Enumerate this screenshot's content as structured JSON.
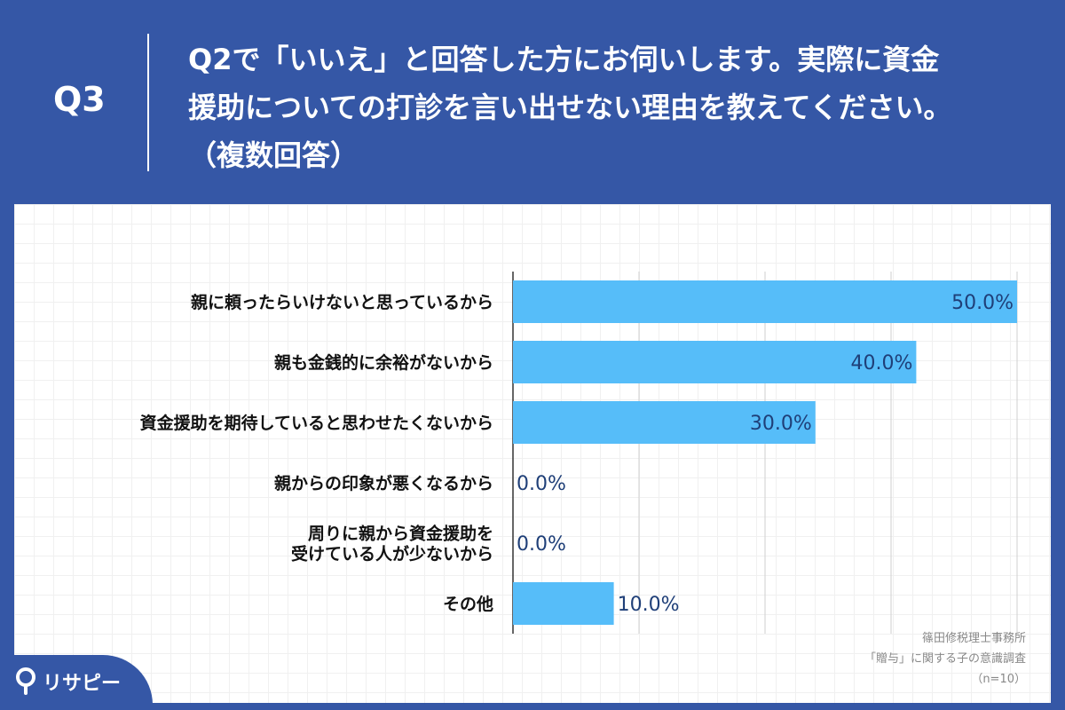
{
  "header": {
    "question_no": "Q3",
    "question_lines": [
      "Q2で「いいえ」と回答した方にお伺いします。実際に資金",
      "援助についての打診を言い出せない理由を教えてください。",
      "（複数回答）"
    ]
  },
  "source": {
    "lines": [
      "篠田修税理士事務所",
      "「贈与」に関する子の意識調査",
      "（n=10）"
    ]
  },
  "logo": {
    "text": "リサピー",
    "icon": "location-pin-icon"
  },
  "colors": {
    "background": "#3557a6",
    "bar": "#56bdf9",
    "value_label": "#1f3f78",
    "category_label": "#111111",
    "grid": "#cfcfcf"
  },
  "chart_data": {
    "type": "bar",
    "orientation": "horizontal",
    "categories": [
      "親に頼ったらいけないと思っているから",
      "親も金銭的に余裕がないから",
      "資金援助を期待していると思わせたくないから",
      "親からの印象が悪くなるから",
      "周りに親から資金援助を\n受けている人が少ないから",
      "その他"
    ],
    "values": [
      50.0,
      40.0,
      30.0,
      0.0,
      0.0,
      10.0
    ],
    "value_labels": [
      "50.0%",
      "40.0%",
      "30.0%",
      "0.0%",
      "0.0%",
      "10.0%"
    ],
    "xlim": [
      0,
      50
    ],
    "grid": true,
    "gridline_values": [
      0,
      12.5,
      25,
      37.5,
      50
    ]
  }
}
